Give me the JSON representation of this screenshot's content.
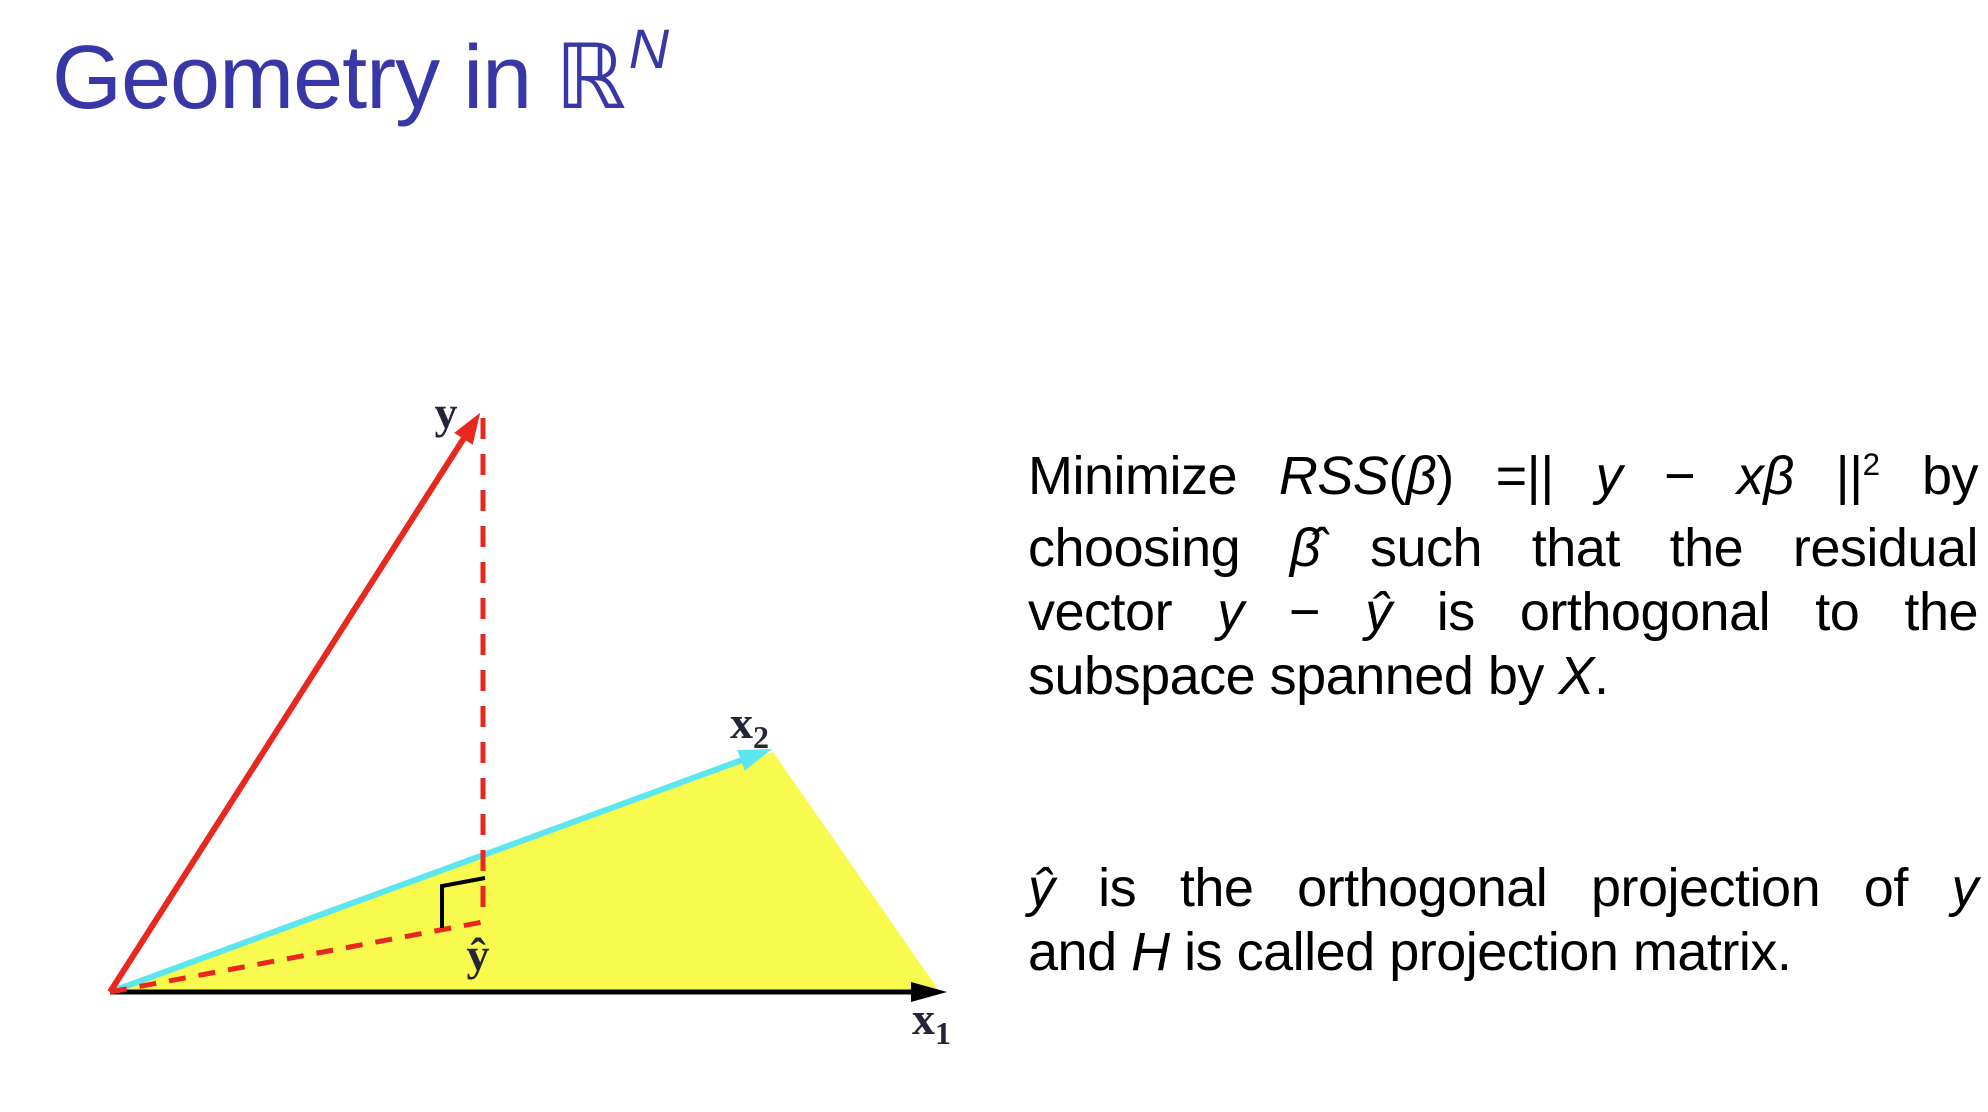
{
  "slide": {
    "title": {
      "main": "Geometry in ",
      "set_symbol": "ℝ",
      "superscript": "N"
    },
    "colors": {
      "title_blue": "#3737A8",
      "vector_red": "#E8281E",
      "vector_cyan": "#5CE6F0",
      "plane_yellow": "#F8FA4E",
      "axis_black": "#000000",
      "label_dark": "#252538",
      "background": "#FFFFFF"
    }
  },
  "diagram": {
    "labels": {
      "y": "y",
      "x1_base": "x",
      "x1_sub": "1",
      "x2_base": "x",
      "x2_sub": "2",
      "y_hat": "ŷ"
    }
  },
  "text_panel": {
    "paragraph1": {
      "lines": [
        [
          {
            "t": "Minimize "
          },
          {
            "t": "RSS",
            "i": true
          },
          {
            "t": "("
          },
          {
            "t": "β",
            "i": true
          },
          {
            "t": ") =|| "
          },
          {
            "t": "y",
            "i": true
          },
          {
            "t": " − "
          },
          {
            "t": "xβ",
            "i": true
          },
          {
            "t": " ||"
          },
          {
            "t": "2",
            "sup": true
          },
          {
            "t": " by"
          }
        ],
        [
          {
            "t": "choosing "
          },
          {
            "t": "β̂",
            "i": true
          },
          {
            "t": " such that the residual"
          }
        ],
        [
          {
            "t": "vector "
          },
          {
            "t": "y",
            "i": true
          },
          {
            "t": " − "
          },
          {
            "t": "ŷ",
            "i": true
          },
          {
            "t": " is orthogonal to the"
          }
        ],
        [
          {
            "t": "subspace spanned by "
          },
          {
            "t": "X",
            "i": true
          },
          {
            "t": "."
          }
        ]
      ]
    },
    "paragraph2": {
      "lines": [
        [
          {
            "t": "ŷ",
            "i": true
          },
          {
            "t": " is the orthogonal projection of "
          },
          {
            "t": "y",
            "i": true
          }
        ],
        [
          {
            "t": "and "
          },
          {
            "t": "H",
            "i": true
          },
          {
            "t": " is called projection matrix."
          }
        ]
      ]
    }
  }
}
